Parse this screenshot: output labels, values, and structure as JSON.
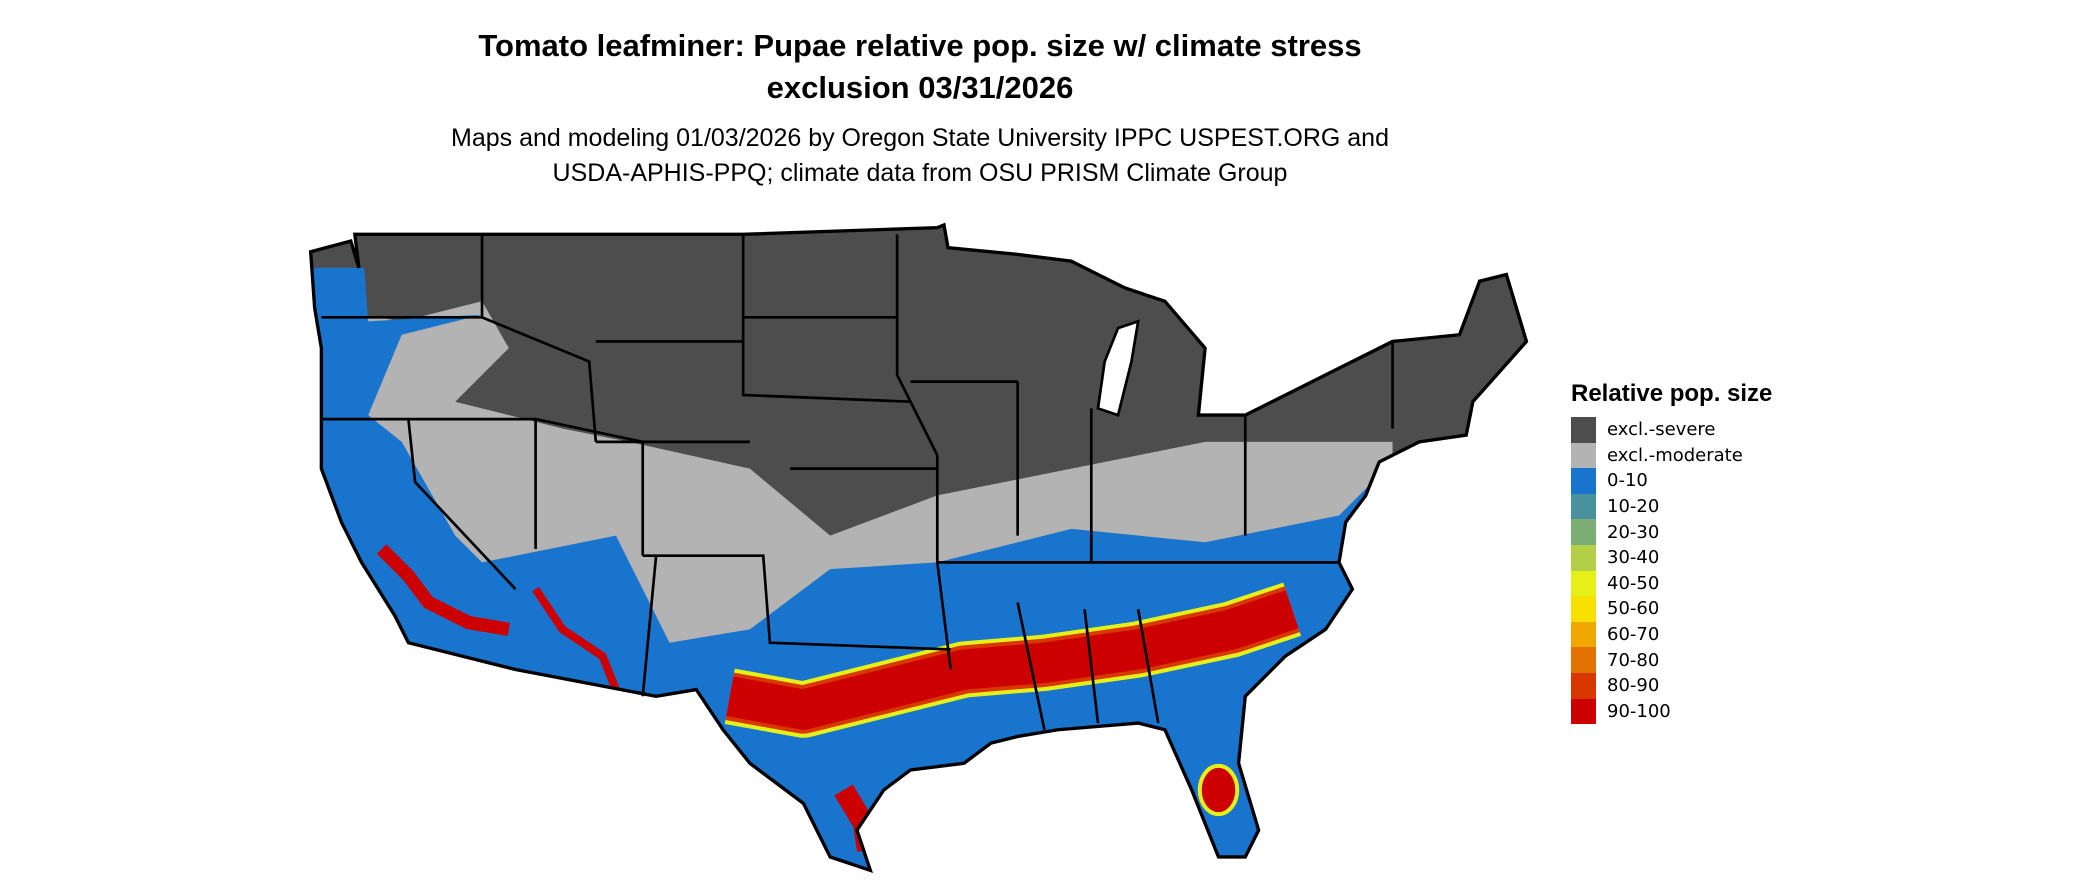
{
  "title_line1": "Tomato leafminer: Pupae relative pop. size w/ climate stress",
  "title_line2": "exclusion 03/31/2026",
  "subtitle_line1": "Maps and modeling 01/03/2026 by Oregon State University IPPC USPEST.ORG and",
  "subtitle_line2": "USDA-APHIS-PPQ; climate data from OSU PRISM Climate Group",
  "legend": {
    "title": "Relative pop. size",
    "items": [
      {
        "label": "excl.-severe",
        "color": "#4d4d4d"
      },
      {
        "label": "excl.-moderate",
        "color": "#b3b3b3"
      },
      {
        "label": "0-10",
        "color": "#1874cd"
      },
      {
        "label": "10-20",
        "color": "#4a919e"
      },
      {
        "label": "20-30",
        "color": "#7bad74"
      },
      {
        "label": "30-40",
        "color": "#b2cf47"
      },
      {
        "label": "40-50",
        "color": "#e5f019"
      },
      {
        "label": "50-60",
        "color": "#f8e000"
      },
      {
        "label": "60-70",
        "color": "#f0a800"
      },
      {
        "label": "70-80",
        "color": "#e47200"
      },
      {
        "label": "80-90",
        "color": "#d83800"
      },
      {
        "label": "90-100",
        "color": "#cc0000"
      }
    ]
  }
}
